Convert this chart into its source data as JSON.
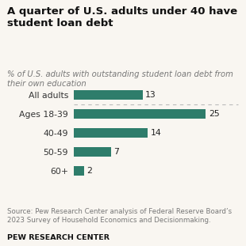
{
  "title": "A quarter of U.S. adults under 40 have\nstudent loan debt",
  "subtitle": "% of U.S. adults with outstanding student loan debt from\ntheir own education",
  "categories": [
    "All adults",
    "Ages 18-39",
    "40-49",
    "50-59",
    "60+"
  ],
  "values": [
    13,
    25,
    14,
    7,
    2
  ],
  "bar_color": "#2e7d6b",
  "xlim": [
    0,
    27
  ],
  "source_text": "Source: Pew Research Center analysis of Federal Reserve Board’s\n2023 Survey of Household Economics and Decisionmaking.",
  "footer_text": "PEW RESEARCH CENTER",
  "background_color": "#f9f6f1",
  "title_fontsize": 9.5,
  "subtitle_fontsize": 7.2,
  "label_fontsize": 7.8,
  "value_fontsize": 7.8,
  "source_fontsize": 6.2,
  "footer_fontsize": 6.8
}
